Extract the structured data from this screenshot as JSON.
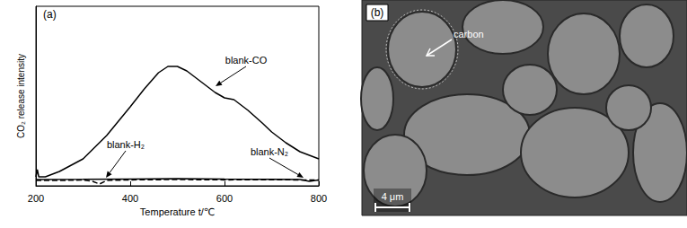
{
  "chart_data": {
    "type": "line",
    "panel_label": "(a)",
    "xlabel": "Temperature t/℃",
    "ylabel": "CO₂ release intensity",
    "xlim": [
      200,
      800
    ],
    "xticks": [
      200,
      400,
      600,
      800
    ],
    "ylim": [
      0,
      100
    ],
    "tick_labels": "x",
    "grid": false,
    "series": [
      {
        "name": "blank-CO",
        "color": "#000000",
        "line_style": "solid",
        "x": [
          200,
          203,
          206,
          220,
          250,
          300,
          350,
          400,
          430,
          460,
          480,
          500,
          520,
          550,
          580,
          600,
          620,
          650,
          680,
          700,
          730,
          760,
          780,
          800
        ],
        "values": [
          5,
          9,
          5,
          5,
          8,
          15,
          28,
          44,
          54,
          63,
          66.5,
          66.5,
          64,
          58,
          52,
          49,
          48,
          42,
          35,
          30,
          24,
          19,
          17,
          15
        ]
      },
      {
        "name": "blank-H₂",
        "color": "#000000",
        "line_style": "dashed",
        "x": [
          200,
          250,
          300,
          320,
          335,
          350,
          400,
          500,
          600,
          700,
          800
        ],
        "values": [
          3,
          3,
          3.2,
          2.5,
          1,
          3,
          3.3,
          3.5,
          3.3,
          3.4,
          3.2
        ]
      },
      {
        "name": "blank-N₂",
        "color": "#000000",
        "line_style": "solid",
        "x": [
          200,
          300,
          400,
          500,
          600,
          700,
          760,
          780,
          800
        ],
        "values": [
          3.5,
          3.6,
          3.8,
          4,
          3.7,
          3.6,
          3.5,
          2.5,
          3.3
        ]
      }
    ]
  },
  "panel_b": {
    "label": "(b)",
    "annotation": "carbon",
    "scale_bar": "4 μm"
  }
}
